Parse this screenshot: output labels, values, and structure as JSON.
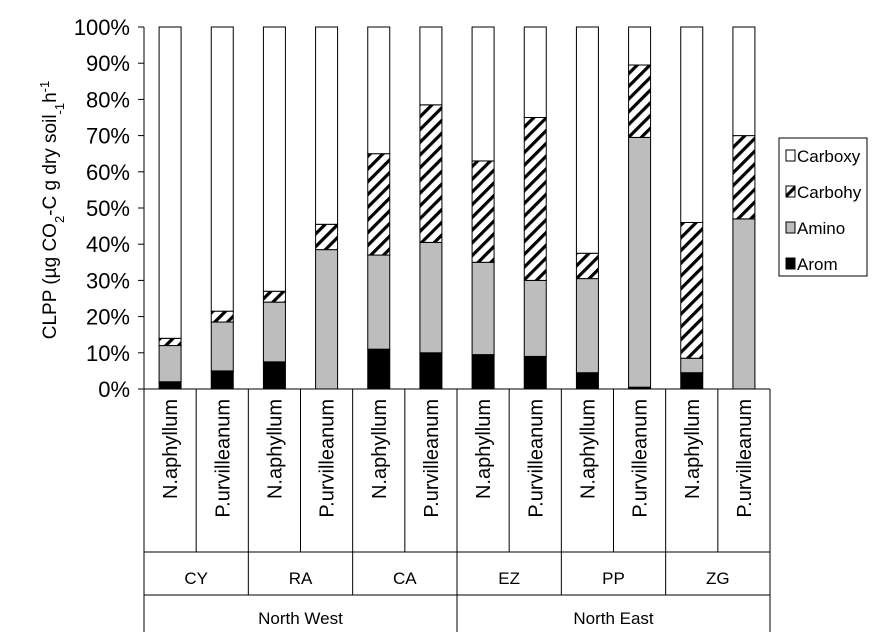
{
  "chart_data": {
    "type": "bar",
    "stacked": true,
    "percent": true,
    "ylabel": "CLPP (µg CO2-C g dry soil-1 h-1)",
    "ylabel_parts": {
      "a": "CLPP (µg CO",
      "sub1": "2",
      "b": "-C g dry soil",
      "sub2": "-1",
      "c": "h",
      "sup": "-1"
    },
    "ylim": [
      0,
      100
    ],
    "yticks": [
      0,
      10,
      20,
      30,
      40,
      50,
      60,
      70,
      80,
      90,
      100
    ],
    "ytick_labels": [
      "0%",
      "10%",
      "20%",
      "30%",
      "40%",
      "50%",
      "60%",
      "70%",
      "80%",
      "90%",
      "100%"
    ],
    "grid": false,
    "legend_position": "right",
    "categories": [
      "N.aphyllum",
      "P.urvilleanum",
      "N.aphyllum",
      "P.urvilleanum",
      "N.aphyllum",
      "P.urvilleanum",
      "N.aphyllum",
      "P.urvilleanum",
      "N.aphyllum",
      "P.urvilleanum",
      "N.aphyllum",
      "P.urvilleanum"
    ],
    "sites": [
      "CY",
      "RA",
      "CA",
      "EZ",
      "PP",
      "ZG"
    ],
    "regions": [
      "North West",
      "North East"
    ],
    "series": [
      {
        "name": "Arom",
        "fill": "solid",
        "color": "#000000",
        "values": [
          2,
          5,
          7.5,
          0,
          11,
          10,
          9.5,
          9,
          4.5,
          0.5,
          4.5,
          0
        ]
      },
      {
        "name": "Amino",
        "fill": "solid",
        "color": "#bdbdbd",
        "values": [
          10,
          13.5,
          16.5,
          38.5,
          26,
          30.5,
          25.5,
          21,
          26,
          69,
          4,
          47
        ]
      },
      {
        "name": "Carbohy",
        "fill": "hatch",
        "color": "#ffffff",
        "values": [
          2,
          3,
          3,
          7,
          28,
          38,
          28,
          45,
          7,
          20,
          37.5,
          23
        ]
      },
      {
        "name": "Carboxy",
        "fill": "solid",
        "color": "#ffffff",
        "values": [
          86,
          78.5,
          73,
          54.5,
          35,
          21.5,
          37,
          25,
          62.5,
          10.5,
          54,
          30
        ]
      }
    ]
  }
}
